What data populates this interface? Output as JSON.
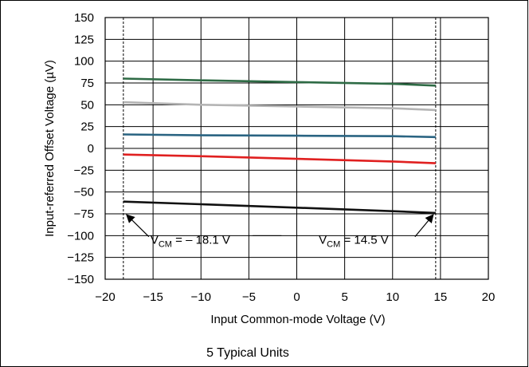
{
  "chart_data": {
    "type": "line",
    "title": "",
    "xlabel": "Input Common-mode Voltage (V)",
    "ylabel": "Input-referred Offset Voltage (µV)",
    "caption": "5 Typical Units",
    "xlim": [
      -20,
      20
    ],
    "ylim": [
      -150,
      150
    ],
    "xticks": [
      -20,
      -15,
      -10,
      -5,
      0,
      5,
      10,
      15,
      20
    ],
    "yticks": [
      -150,
      -125,
      -100,
      -75,
      -50,
      -25,
      0,
      25,
      50,
      75,
      100,
      125,
      150
    ],
    "grid": true,
    "series": [
      {
        "color": "#2e6b45",
        "x": [
          -18.1,
          -10,
          0,
          10,
          14.5
        ],
        "y": [
          80,
          78,
          76,
          74,
          72
        ]
      },
      {
        "color": "#b4b4b4",
        "x": [
          -18.1,
          -10,
          0,
          10,
          14.5
        ],
        "y": [
          53,
          50,
          48,
          46,
          44
        ]
      },
      {
        "color": "#2a6482",
        "x": [
          -18.1,
          -10,
          0,
          10,
          14.5
        ],
        "y": [
          16,
          15,
          14.5,
          14,
          13
        ]
      },
      {
        "color": "#e02020",
        "x": [
          -18.1,
          -10,
          0,
          10,
          14.5
        ],
        "y": [
          -7,
          -9,
          -12,
          -15,
          -17
        ]
      },
      {
        "color": "#111111",
        "x": [
          -18.1,
          -10,
          0,
          10,
          14.5
        ],
        "y": [
          -61,
          -64,
          -68,
          -72,
          -74
        ]
      }
    ],
    "vlines": [
      -18.1,
      14.5
    ],
    "annotations": [
      {
        "id": "left",
        "x": -18.1,
        "main": "V",
        "sub": "CM",
        "rest": " = – 18.1 V"
      },
      {
        "id": "right",
        "x": 14.5,
        "main": "V",
        "sub": "CM",
        "rest": " = 14.5 V"
      }
    ]
  }
}
